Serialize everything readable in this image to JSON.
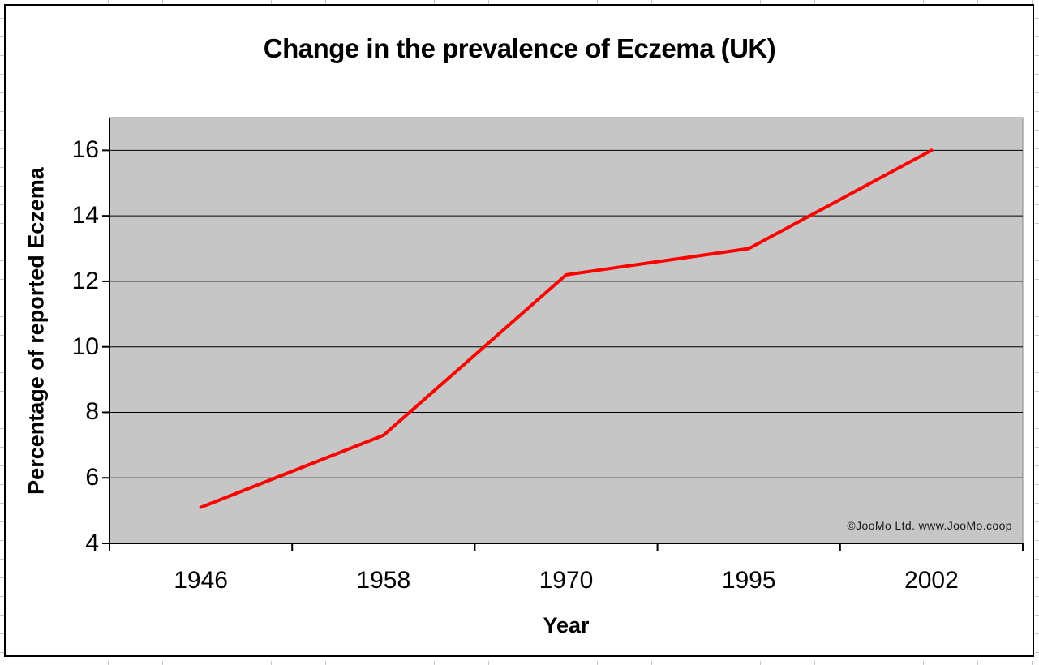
{
  "chart_data": {
    "type": "line",
    "title": "Change in the prevalence of Eczema (UK)",
    "xlabel": "Year",
    "ylabel": "Percentage of reported Eczema",
    "categories": [
      "1946",
      "1958",
      "1970",
      "1995",
      "2002"
    ],
    "series": [
      {
        "color": "#ff0000",
        "stroke_width": 4,
        "values": [
          5.1,
          7.3,
          12.2,
          13,
          16
        ]
      }
    ],
    "ylim": [
      4,
      17
    ],
    "yticks": [
      4,
      6,
      8,
      10,
      12,
      14,
      16
    ],
    "x_axis_type": "category",
    "grid": "horizontal",
    "legend": "none",
    "plot_bg_color": "#c6c6c6",
    "plot_border_color": "#858585",
    "grid_color": "#000000",
    "axis_color": "#000000",
    "annotation": "©JooMo Ltd. www.JooMo.coop"
  }
}
